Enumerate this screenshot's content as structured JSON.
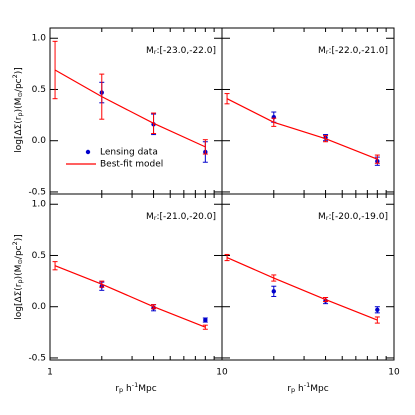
{
  "xlabel": [
    "r",
    "p",
    " h",
    "-1",
    "Mpc"
  ],
  "ylabel": [
    "log[ΔΣ(r",
    "p",
    ")(M",
    "⊙",
    "/pc",
    "2",
    ")]"
  ],
  "chart_data": [
    {
      "type": "line",
      "label": [
        "M",
        "r",
        ":[-23.0,-22.0]"
      ],
      "xscale": "log",
      "xlim": [
        1,
        10
      ],
      "ylim": [
        -0.52,
        1.1
      ],
      "legend": "lower left",
      "yticks": [
        {
          "value": -0.5,
          "label": "-0.5"
        },
        {
          "value": 0,
          "label": "0.0"
        },
        {
          "value": 0.5,
          "label": "0.5"
        },
        {
          "value": 1,
          "label": "1.0"
        }
      ],
      "series": [
        {
          "name": "Lensing data",
          "color": "#0000cc",
          "x": [
            2,
            4,
            8
          ],
          "values": [
            0.47,
            0.16,
            -0.11
          ],
          "errors": [
            0.1,
            0.1,
            0.1
          ]
        },
        {
          "name": "Best-fit model",
          "color": "#ff0000",
          "x": [
            1.07,
            2,
            4,
            8
          ],
          "values": [
            0.69,
            0.43,
            0.17,
            -0.06
          ],
          "errors": [
            0.28,
            0.22,
            0.1,
            0.07
          ]
        }
      ]
    },
    {
      "type": "line",
      "label": [
        "M",
        "r",
        ":[-22.0,-21.0]"
      ],
      "xscale": "log",
      "xlim": [
        1,
        10
      ],
      "ylim": [
        -0.52,
        1.1
      ],
      "series": [
        {
          "color": "#0000cc",
          "x": [
            2,
            4,
            8
          ],
          "values": [
            0.23,
            0.03,
            -0.2
          ],
          "errors": [
            0.05,
            0.03,
            0.04
          ]
        },
        {
          "color": "#ff0000",
          "x": [
            1.07,
            2,
            4,
            8
          ],
          "values": [
            0.41,
            0.18,
            0.02,
            -0.18
          ],
          "errors": [
            0.05,
            0.04,
            0.03,
            0.04
          ]
        }
      ]
    },
    {
      "type": "line",
      "label": [
        "M",
        "r",
        ":[-21.0,-20.0]"
      ],
      "xscale": "log",
      "xlim": [
        1,
        10
      ],
      "ylim": [
        -0.52,
        1.1
      ],
      "xticks": [
        1,
        10
      ],
      "yticks": [
        {
          "value": -0.5,
          "label": "-0.5"
        },
        {
          "value": 0,
          "label": "0.0"
        },
        {
          "value": 0.5,
          "label": "0.5"
        },
        {
          "value": 1,
          "label": "1.0"
        }
      ],
      "series": [
        {
          "color": "#0000cc",
          "x": [
            2,
            4,
            8
          ],
          "values": [
            0.2,
            -0.01,
            -0.13
          ],
          "errors": [
            0.04,
            0.03,
            0.02
          ]
        },
        {
          "color": "#ff0000",
          "x": [
            1.07,
            2,
            4,
            8
          ],
          "values": [
            0.4,
            0.22,
            0.0,
            -0.2
          ],
          "errors": [
            0.04,
            0.03,
            0.02,
            0.02
          ]
        }
      ]
    },
    {
      "type": "line",
      "label": [
        "M",
        "r",
        ":[-20.0,-19.0]"
      ],
      "xscale": "log",
      "xlim": [
        1,
        10
      ],
      "ylim": [
        -0.52,
        1.1
      ],
      "xticks": [
        10
      ],
      "series": [
        {
          "color": "#0000cc",
          "x": [
            2,
            4,
            8
          ],
          "values": [
            0.15,
            0.06,
            -0.03
          ],
          "errors": [
            0.05,
            0.03,
            0.03
          ]
        },
        {
          "color": "#ff0000",
          "x": [
            1.07,
            2,
            4,
            8
          ],
          "values": [
            0.48,
            0.28,
            0.07,
            -0.13
          ],
          "errors": [
            0.03,
            0.03,
            0.02,
            0.03
          ]
        }
      ]
    }
  ]
}
